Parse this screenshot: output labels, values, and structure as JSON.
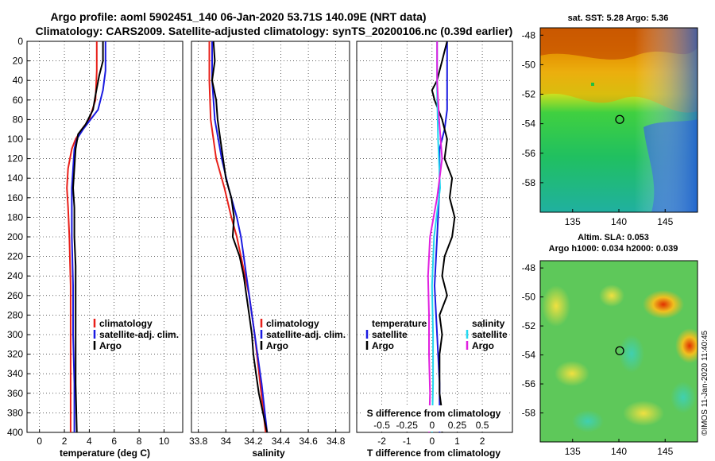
{
  "title": {
    "line1": "Argo profile: aoml 5902451_140 06-Jan-2020 53.71S 140.09E (NRT data)",
    "line2": "Climatology: CARS2009. Satellite-adjusted climatology: synTS_20200106.nc (0.39d earlier)"
  },
  "colors": {
    "climatology": "#e8201a",
    "satellite": "#1a1ae0",
    "argo": "#000000",
    "sal_sat": "#22d8f0",
    "sal_argo": "#e020e0"
  },
  "chart_data": [
    {
      "id": "temperature",
      "type": "line",
      "xlabel": "temperature (deg C)",
      "xlim": [
        -1,
        11.5
      ],
      "xticks": [
        "0",
        "2",
        "4",
        "6",
        "8",
        "10"
      ],
      "ylim": [
        0,
        400
      ],
      "yticks": [
        "0",
        "20",
        "40",
        "60",
        "80",
        "100",
        "120",
        "140",
        "160",
        "180",
        "200",
        "220",
        "240",
        "260",
        "280",
        "300",
        "320",
        "340",
        "360",
        "380",
        "400"
      ],
      "legend": [
        {
          "label": "climatology",
          "color": "#e8201a"
        },
        {
          "label": "satellite-adj. clim.",
          "color": "#1a1ae0"
        },
        {
          "label": "Argo",
          "color": "#000000"
        }
      ],
      "series": [
        {
          "name": "climatology",
          "color": "#e8201a",
          "depth": [
            0,
            30,
            60,
            80,
            90,
            100,
            110,
            130,
            150,
            170,
            200,
            250,
            300,
            350,
            400
          ],
          "values": [
            4.6,
            4.6,
            4.5,
            4.0,
            3.4,
            2.9,
            2.6,
            2.3,
            2.2,
            2.3,
            2.4,
            2.5,
            2.5,
            2.5,
            2.5
          ]
        },
        {
          "name": "satellite-adj. clim.",
          "color": "#1a1ae0",
          "depth": [
            0,
            30,
            50,
            70,
            80,
            90,
            100,
            110,
            130,
            150,
            170,
            200,
            250,
            300,
            350,
            400
          ],
          "values": [
            5.3,
            5.3,
            5.1,
            4.7,
            4.1,
            3.5,
            3.0,
            2.8,
            2.7,
            2.6,
            2.6,
            2.6,
            2.7,
            2.7,
            2.8,
            2.8
          ]
        },
        {
          "name": "Argo",
          "color": "#000000",
          "depth": [
            0,
            20,
            35,
            55,
            70,
            85,
            95,
            110,
            130,
            150,
            170,
            200,
            230,
            260,
            300,
            350,
            400
          ],
          "values": [
            5.1,
            5.1,
            4.8,
            4.5,
            4.3,
            3.7,
            3.1,
            2.9,
            2.8,
            2.7,
            2.8,
            2.8,
            2.9,
            2.9,
            2.9,
            2.9,
            3.0
          ]
        }
      ]
    },
    {
      "id": "salinity",
      "type": "line",
      "xlabel": "salinity",
      "xlim": [
        33.75,
        34.9
      ],
      "xticks": [
        "33.8",
        "34",
        "34.2",
        "34.4",
        "34.6",
        "34.8"
      ],
      "ylim": [
        0,
        400
      ],
      "legend": [
        {
          "label": "climatology",
          "color": "#e8201a"
        },
        {
          "label": "satellite-adj. clim.",
          "color": "#1a1ae0"
        },
        {
          "label": "Argo",
          "color": "#000000"
        }
      ],
      "series": [
        {
          "name": "climatology",
          "color": "#e8201a",
          "depth": [
            0,
            40,
            80,
            120,
            150,
            180,
            200,
            220,
            240,
            260,
            300,
            350,
            400
          ],
          "values": [
            33.88,
            33.88,
            33.89,
            33.93,
            33.99,
            34.04,
            34.08,
            34.11,
            34.14,
            34.17,
            34.21,
            34.25,
            34.29
          ]
        },
        {
          "name": "satellite-adj. clim.",
          "color": "#1a1ae0",
          "depth": [
            0,
            40,
            80,
            120,
            150,
            180,
            200,
            220,
            240,
            260,
            300,
            350,
            400
          ],
          "values": [
            33.9,
            33.9,
            33.92,
            33.97,
            34.02,
            34.08,
            34.11,
            34.13,
            34.15,
            34.17,
            34.21,
            34.26,
            34.3
          ]
        },
        {
          "name": "Argo",
          "color": "#000000",
          "depth": [
            0,
            20,
            40,
            60,
            80,
            100,
            120,
            140,
            160,
            180,
            200,
            220,
            240,
            260,
            280,
            300,
            320,
            340,
            360,
            380,
            400
          ],
          "values": [
            33.91,
            33.92,
            33.9,
            33.93,
            33.94,
            33.96,
            33.98,
            34.0,
            34.04,
            34.06,
            34.05,
            34.1,
            34.13,
            34.15,
            34.17,
            34.19,
            34.2,
            34.22,
            34.24,
            34.27,
            34.3
          ]
        }
      ]
    },
    {
      "id": "difference",
      "type": "line",
      "xlabel": "T difference from climatology",
      "xlim": [
        -3,
        3.2
      ],
      "xticks": [
        "-2",
        "-1",
        "0",
        "1",
        "2"
      ],
      "sublabel": "S difference from climatology",
      "subticks": [
        {
          "label": "-0.5",
          "value": -0.5
        },
        {
          "label": "-0.25",
          "value": -0.25
        },
        {
          "label": "0",
          "value": 0
        },
        {
          "label": "0.25",
          "value": 0.25
        },
        {
          "label": "0.5",
          "value": 0.5
        }
      ],
      "ylim": [
        0,
        400
      ],
      "legend_temperature": {
        "title": "temperature",
        "items": [
          {
            "label": "satellite",
            "color": "#1a1ae0"
          },
          {
            "label": "Argo",
            "color": "#000000"
          }
        ]
      },
      "legend_salinity": {
        "title": "salinity",
        "items": [
          {
            "label": "satellite",
            "color": "#22d8f0"
          },
          {
            "label": "Argo",
            "color": "#e020e0"
          }
        ]
      },
      "series": [
        {
          "name": "T satellite",
          "color": "#1a1ae0",
          "depth": [
            0,
            50,
            70,
            90,
            110,
            150,
            200,
            250,
            300,
            350,
            400
          ],
          "values": [
            0.6,
            0.6,
            0.6,
            0.5,
            0.3,
            0.3,
            0.2,
            0.1,
            0.2,
            0.3,
            0.3
          ]
        },
        {
          "name": "T Argo",
          "color": "#000000",
          "depth": [
            0,
            10,
            20,
            30,
            40,
            50,
            60,
            80,
            100,
            120,
            140,
            160,
            180,
            200,
            220,
            240,
            260,
            280,
            300,
            320,
            340,
            360,
            380,
            400
          ],
          "values": [
            0.6,
            0.5,
            0.4,
            0.3,
            0.2,
            0.0,
            0.1,
            0.4,
            0.6,
            0.5,
            0.8,
            0.7,
            0.9,
            0.8,
            0.5,
            0.4,
            0.6,
            0.3,
            0.4,
            0.3,
            0.3,
            0.3,
            0.4,
            0.4
          ]
        },
        {
          "name": "S satellite",
          "color": "#22d8f0",
          "depth": [
            0,
            50,
            100,
            150,
            200,
            250,
            300,
            350,
            400
          ],
          "values": [
            0.05,
            0.05,
            0.06,
            0.08,
            0.02,
            0.0,
            0.01,
            0.01,
            0.0
          ]
        },
        {
          "name": "S Argo",
          "color": "#e020e0",
          "depth": [
            0,
            40,
            80,
            120,
            160,
            200,
            240,
            280,
            320,
            360,
            400
          ],
          "values": [
            0.05,
            0.05,
            0.07,
            0.1,
            0.05,
            -0.02,
            -0.04,
            -0.03,
            -0.03,
            -0.02,
            -0.03
          ]
        }
      ]
    },
    {
      "id": "sst_map",
      "type": "heatmap",
      "title": "sat. SST: 5.28 Argo: 5.36",
      "xticks": [
        "135",
        "140",
        "145"
      ],
      "yticks": [
        "-48",
        "-50",
        "-52",
        "-54",
        "-56",
        "-58"
      ],
      "xlim": [
        131.5,
        148.5
      ],
      "ylim": [
        -60,
        -47.5
      ],
      "profile": {
        "lon": 140.09,
        "lat": -53.71
      }
    },
    {
      "id": "sla_map",
      "type": "heatmap",
      "title_line1": "Altim. SLA: 0.053",
      "title_line2": "Argo h1000: 0.034 h2000: 0.039",
      "xticks": [
        "135",
        "140",
        "145"
      ],
      "yticks": [
        "-48",
        "-50",
        "-52",
        "-54",
        "-56",
        "-58"
      ],
      "xlim": [
        131.5,
        148.5
      ],
      "ylim": [
        -60,
        -47.5
      ],
      "profile": {
        "lon": 140.09,
        "lat": -53.71
      }
    }
  ],
  "stamp": "©IMOS 11-Jan-2020 11:40:45"
}
